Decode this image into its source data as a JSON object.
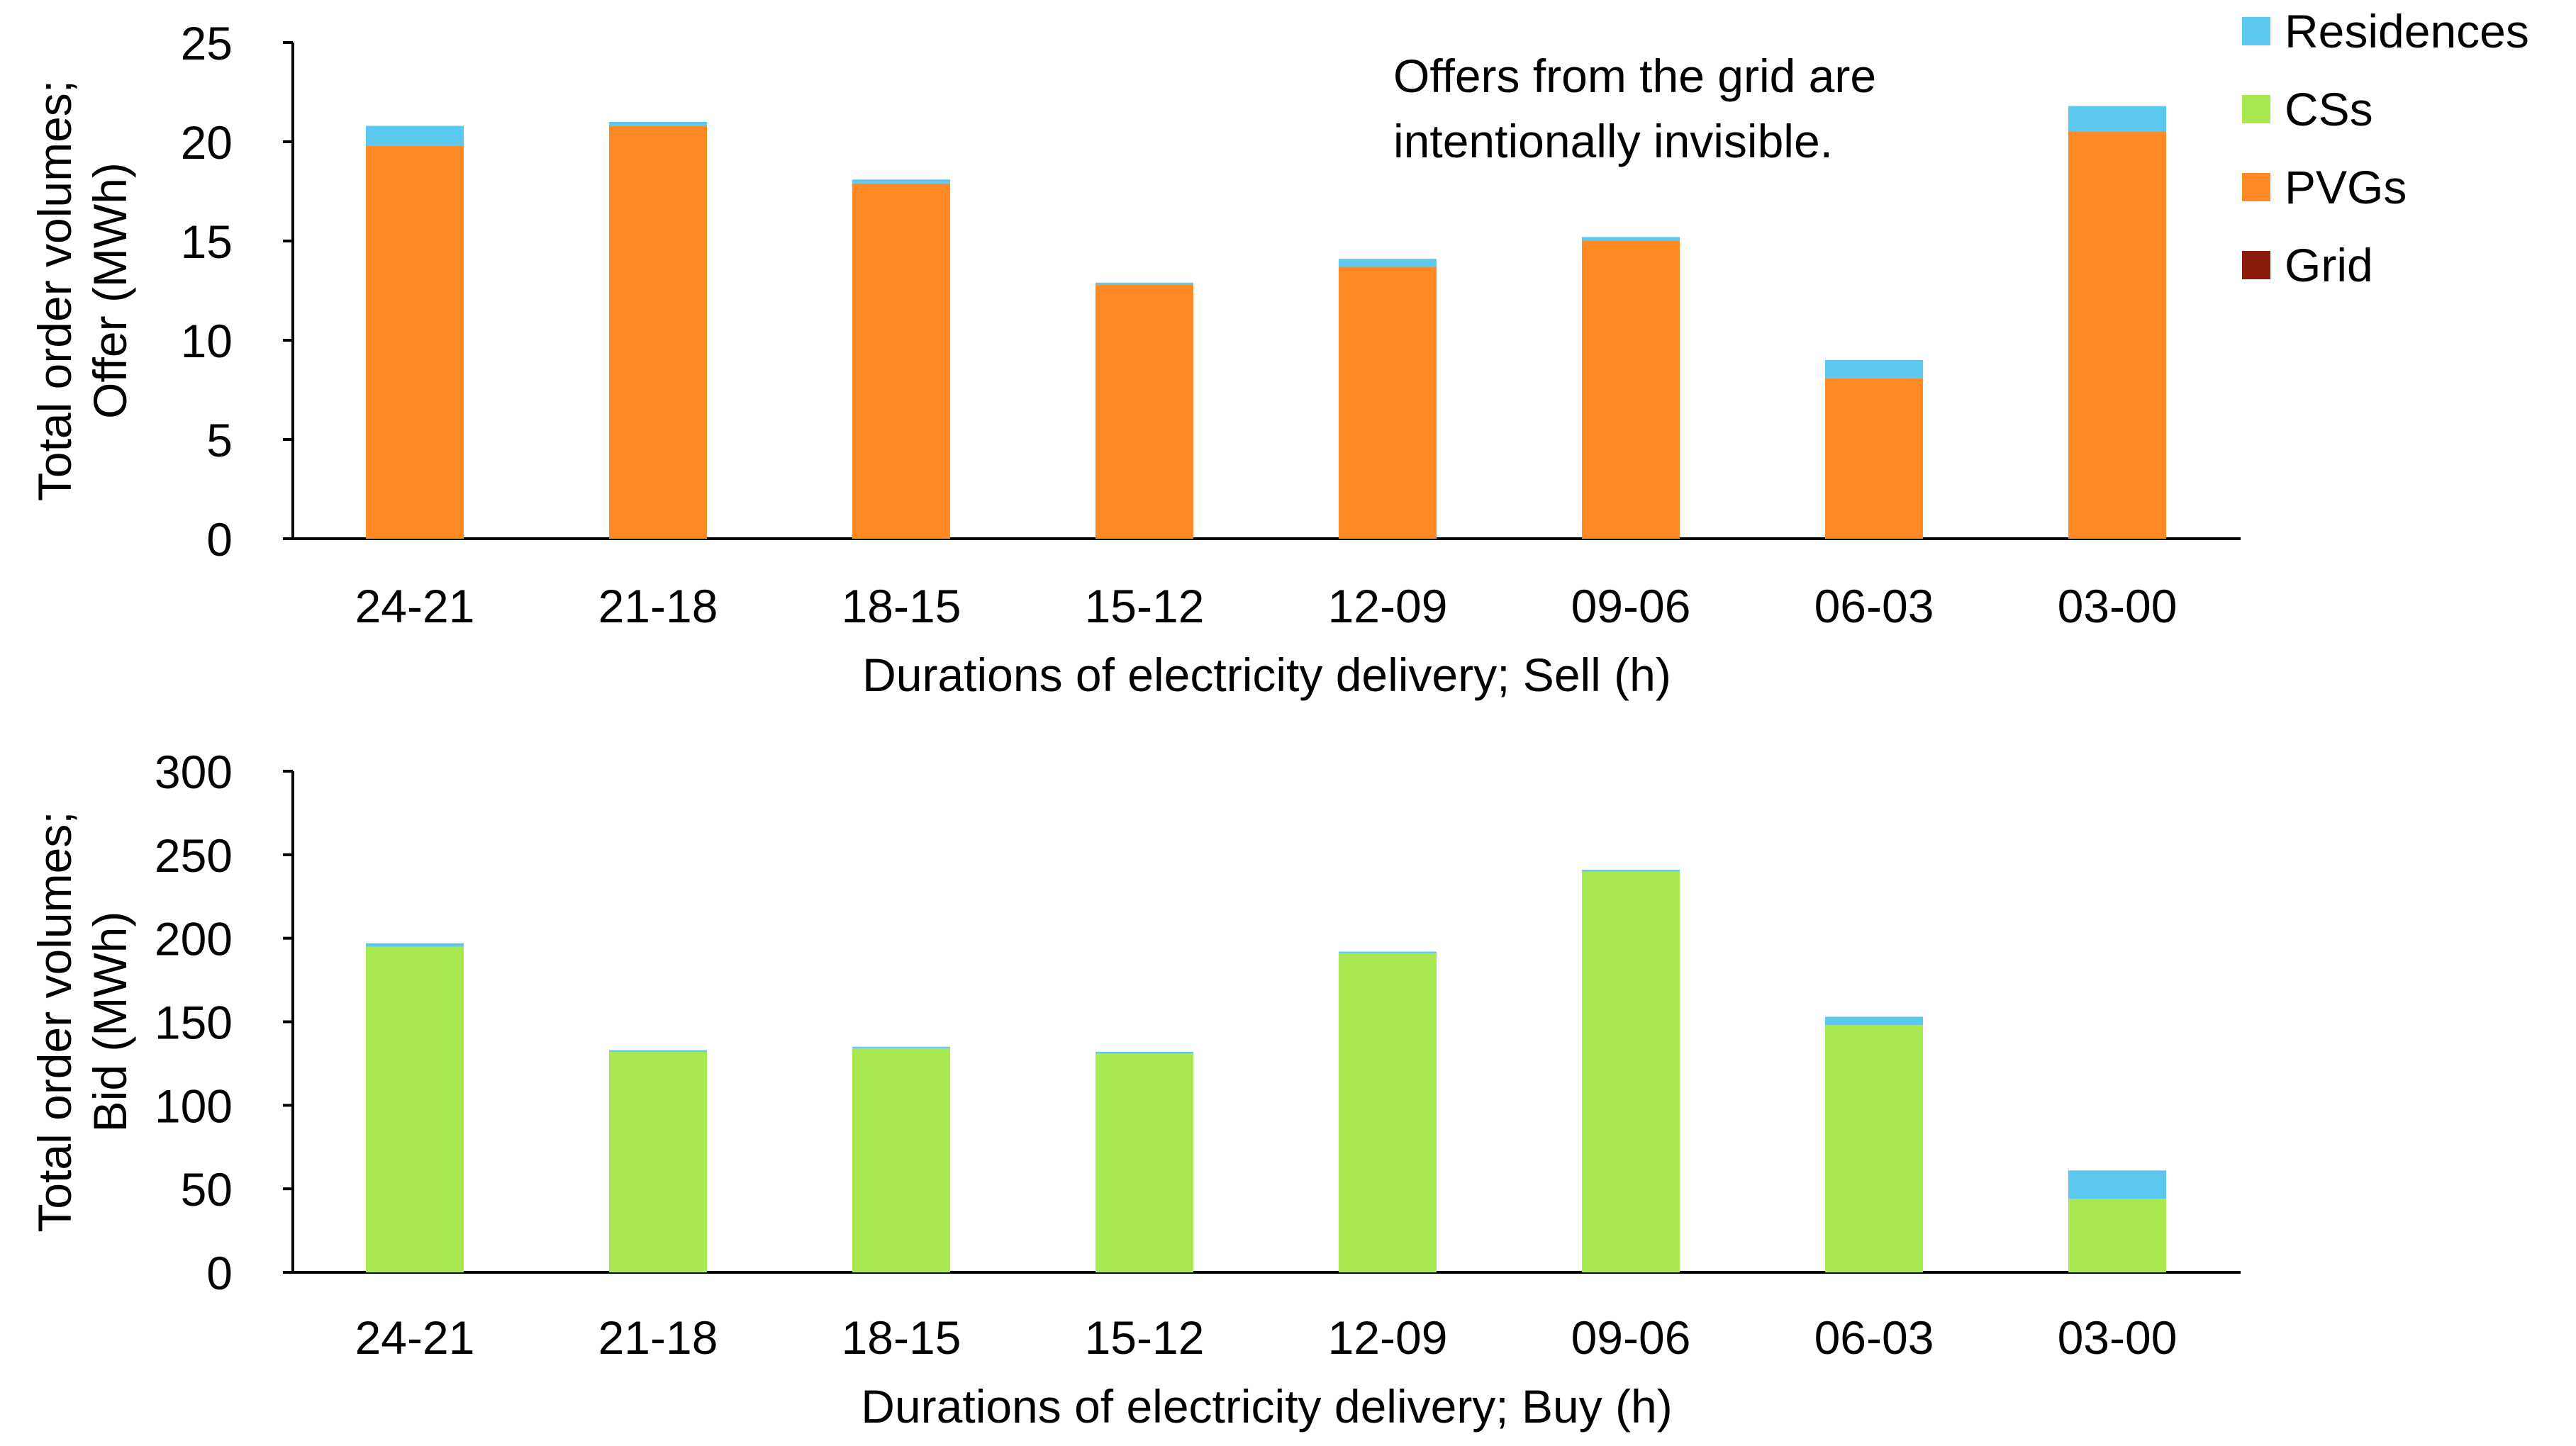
{
  "legend": [
    {
      "name": "Residences",
      "color": "#5BC8EF"
    },
    {
      "name": "CSs",
      "color": "#A8E850"
    },
    {
      "name": "PVGs",
      "color": "#FF8A24"
    },
    {
      "name": "Grid",
      "color": "#8B1A0A"
    }
  ],
  "chart_data": [
    {
      "type": "bar",
      "stacked": true,
      "categories": [
        "24-21",
        "21-18",
        "18-15",
        "15-12",
        "12-09",
        "09-06",
        "06-03",
        "03-00"
      ],
      "series": [
        {
          "name": "Grid",
          "values": [
            0,
            0,
            0,
            0,
            0,
            0,
            0,
            0
          ]
        },
        {
          "name": "PVGs",
          "values": [
            19.8,
            20.8,
            17.9,
            12.8,
            13.7,
            15.0,
            8.1,
            20.5
          ]
        },
        {
          "name": "CSs",
          "values": [
            0,
            0,
            0,
            0,
            0,
            0,
            0,
            0
          ]
        },
        {
          "name": "Residences",
          "values": [
            1.0,
            0.2,
            0.2,
            0.1,
            0.4,
            0.2,
            0.9,
            1.3
          ]
        }
      ],
      "title": "",
      "xlabel": "Durations of electricity delivery; Sell (h)",
      "ylabel_lines": [
        "Total order volumes;",
        "Offer (MWh)"
      ],
      "ylim": [
        0,
        25
      ],
      "yticks": [
        0,
        5,
        10,
        15,
        20,
        25
      ],
      "annotation_lines": [
        "Offers from the grid are",
        "intentionally invisible."
      ]
    },
    {
      "type": "bar",
      "stacked": true,
      "categories": [
        "24-21",
        "21-18",
        "18-15",
        "15-12",
        "12-09",
        "09-06",
        "06-03",
        "03-00"
      ],
      "series": [
        {
          "name": "Grid",
          "values": [
            0,
            0,
            0,
            0,
            0,
            0,
            0,
            0
          ]
        },
        {
          "name": "PVGs",
          "values": [
            0,
            0,
            0,
            0,
            0,
            0,
            0,
            0
          ]
        },
        {
          "name": "CSs",
          "values": [
            195,
            132,
            134,
            131,
            191,
            240,
            148,
            44
          ]
        },
        {
          "name": "Residences",
          "values": [
            2,
            1,
            1,
            1,
            1,
            1,
            5,
            17
          ]
        }
      ],
      "title": "",
      "xlabel": "Durations of electricity delivery; Buy (h)",
      "ylabel_lines": [
        "Total order volumes;",
        "Bid (MWh)"
      ],
      "ylim": [
        0,
        300
      ],
      "yticks": [
        0,
        50,
        100,
        150,
        200,
        250,
        300
      ]
    }
  ]
}
